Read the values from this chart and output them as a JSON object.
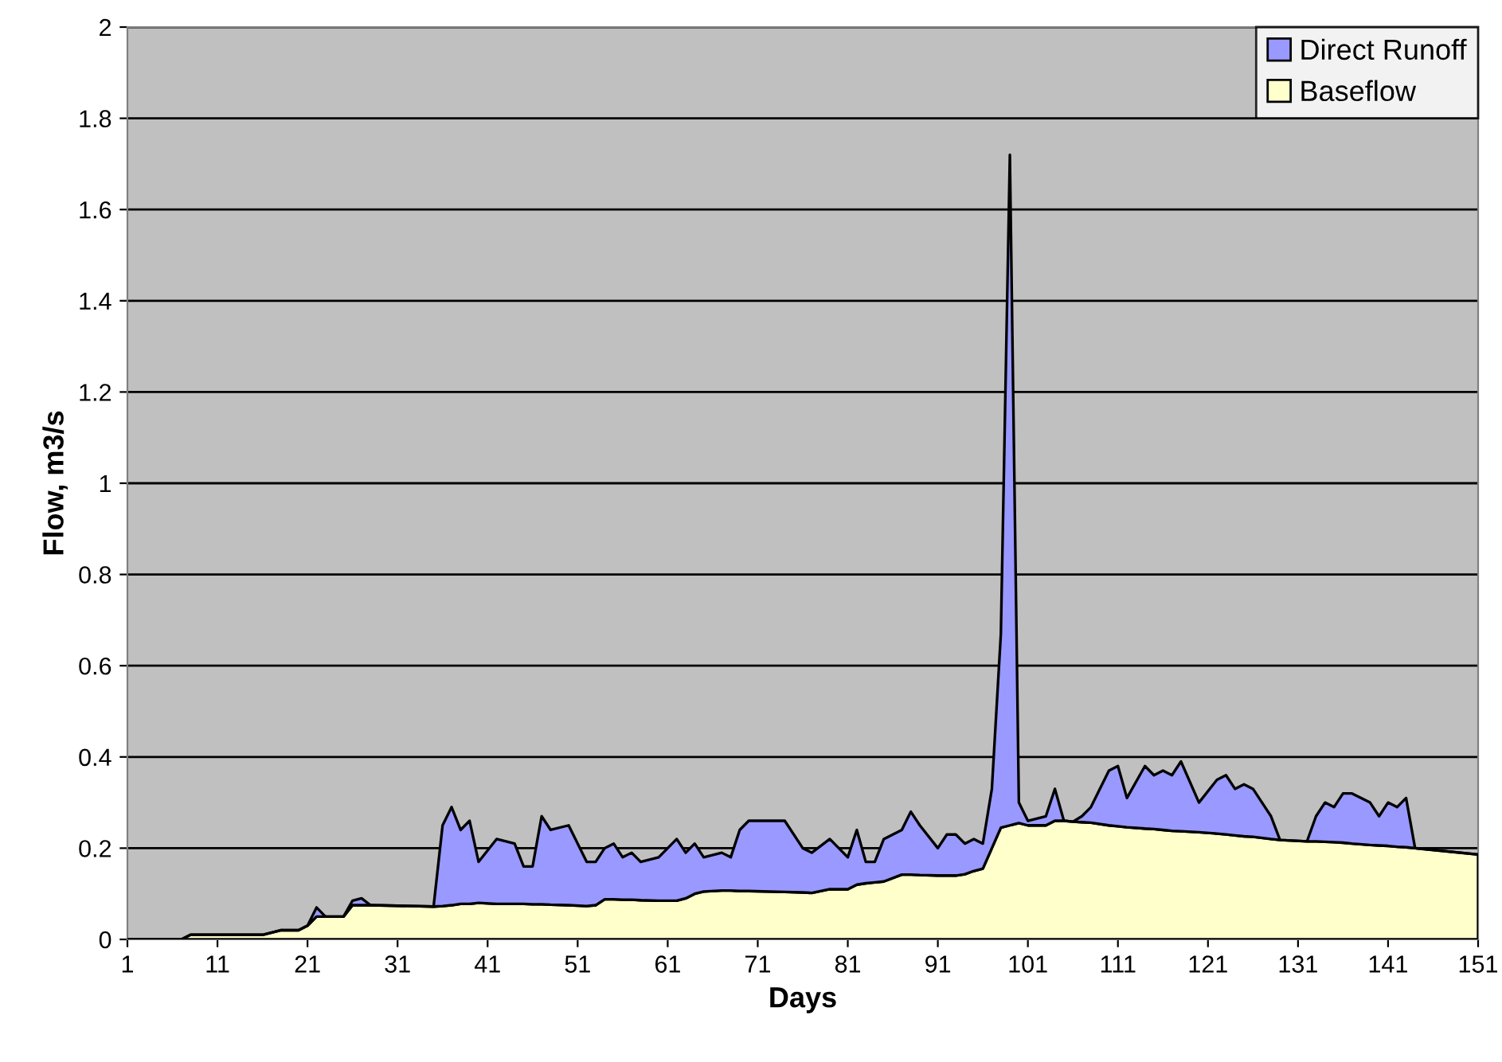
{
  "chart_data": {
    "type": "area",
    "stacked": true,
    "xlabel": "Days",
    "ylabel": "Flow, m3/s",
    "x": [
      1,
      7,
      8,
      16,
      18,
      20,
      21,
      22,
      23,
      25,
      26,
      27,
      28,
      35,
      36,
      37,
      38,
      39,
      40,
      42,
      44,
      45,
      46,
      47,
      48,
      50,
      52,
      53,
      54,
      55,
      56,
      57,
      58,
      60,
      62,
      63,
      64,
      65,
      67,
      68,
      69,
      70,
      74,
      76,
      77,
      79,
      80,
      81,
      82,
      83,
      84,
      85,
      87,
      88,
      89,
      91,
      92,
      93,
      94,
      95,
      96,
      97,
      98,
      99,
      100,
      101,
      103,
      104,
      105,
      106,
      107,
      108,
      110,
      111,
      112,
      114,
      115,
      116,
      117,
      118,
      120,
      122,
      123,
      124,
      125,
      126,
      128,
      129,
      132,
      133,
      134,
      135,
      136,
      137,
      139,
      140,
      141,
      142,
      143,
      144,
      151
    ],
    "series": [
      {
        "name": "Baseflow",
        "color": "#ffffcc",
        "values": [
          0,
          0,
          0.01,
          0.01,
          0.02,
          0.02,
          0.03,
          0.05,
          0.05,
          0.05,
          0.075,
          0.075,
          0.075,
          0.072,
          0.073,
          0.075,
          0.078,
          0.078,
          0.08,
          0.078,
          0.078,
          0.078,
          0.077,
          0.077,
          0.076,
          0.075,
          0.073,
          0.075,
          0.088,
          0.088,
          0.087,
          0.087,
          0.086,
          0.085,
          0.085,
          0.09,
          0.1,
          0.105,
          0.107,
          0.107,
          0.106,
          0.106,
          0.104,
          0.103,
          0.102,
          0.11,
          0.11,
          0.11,
          0.12,
          0.123,
          0.125,
          0.127,
          0.142,
          0.142,
          0.141,
          0.14,
          0.14,
          0.14,
          0.143,
          0.15,
          0.155,
          0.2,
          0.245,
          0.25,
          0.255,
          0.25,
          0.25,
          0.26,
          0.26,
          0.258,
          0.257,
          0.256,
          0.25,
          0.248,
          0.246,
          0.243,
          0.242,
          0.24,
          0.238,
          0.237,
          0.235,
          0.232,
          0.23,
          0.228,
          0.226,
          0.225,
          0.22,
          0.218,
          0.215,
          0.215,
          0.214,
          0.213,
          0.212,
          0.21,
          0.207,
          0.206,
          0.205,
          0.203,
          0.202,
          0.2,
          0.186
        ]
      },
      {
        "name": "Direct Runoff",
        "color": "#9999ff",
        "values": [
          0,
          0,
          0,
          0,
          0,
          0,
          0,
          0.02,
          0,
          0,
          0.01,
          0.015,
          0,
          0,
          0.177,
          0.215,
          0.162,
          0.182,
          0.09,
          0.142,
          0.132,
          0.082,
          0.083,
          0.193,
          0.164,
          0.175,
          0.097,
          0.095,
          0.112,
          0.122,
          0.093,
          0.103,
          0.084,
          0.095,
          0.135,
          0.1,
          0.11,
          0.075,
          0.083,
          0.073,
          0.134,
          0.154,
          0.156,
          0.097,
          0.088,
          0.11,
          0.09,
          0.07,
          0.12,
          0.047,
          0.045,
          0.093,
          0.098,
          0.138,
          0.109,
          0.06,
          0.09,
          0.09,
          0.067,
          0.07,
          0.055,
          0.13,
          0.425,
          1.47,
          0.045,
          0.01,
          0.02,
          0.07,
          0,
          0,
          0.013,
          0.034,
          0.12,
          0.132,
          0.064,
          0.137,
          0.118,
          0.13,
          0.122,
          0.153,
          0.065,
          0.118,
          0.13,
          0.102,
          0.114,
          0.105,
          0.05,
          0,
          0,
          0.055,
          0.086,
          0.077,
          0.108,
          0.11,
          0.093,
          0.064,
          0.095,
          0.087,
          0.108,
          0,
          0
        ]
      }
    ],
    "xlim": [
      1,
      151
    ],
    "xticks": [
      1,
      11,
      21,
      31,
      41,
      51,
      61,
      71,
      81,
      91,
      101,
      111,
      121,
      131,
      141,
      151
    ],
    "ylim": [
      0,
      2
    ],
    "yticks": [
      0,
      0.2,
      0.4,
      0.6,
      0.8,
      1,
      1.2,
      1.4,
      1.6,
      1.8,
      2
    ],
    "grid": "y",
    "legend": "top right"
  }
}
